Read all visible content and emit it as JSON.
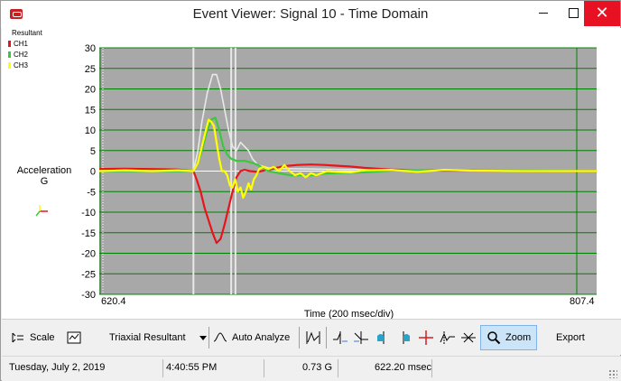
{
  "window": {
    "title": "Event Viewer: Signal  10  - Time Domain",
    "controls": {
      "minimize": "–",
      "maximize": "□",
      "close": "✕"
    }
  },
  "legend": {
    "title": "Resultant",
    "items": [
      {
        "label": "CH1",
        "color": "#e8141b"
      },
      {
        "label": "CH2",
        "color": "#3cc83c"
      },
      {
        "label": "CH3",
        "color": "#ffff00"
      }
    ]
  },
  "y_axis_title": {
    "line1": "Acceleration",
    "line2": "G"
  },
  "chart_data": {
    "type": "line",
    "xlabel": "Time (200 msec/div)",
    "ylabel": "Acceleration G",
    "xlim": [
      620.4,
      807.4
    ],
    "ylim": [
      -30,
      30
    ],
    "x_tick_labels": [
      "620.4",
      "807.4"
    ],
    "y_ticks": [
      30,
      25,
      20,
      15,
      10,
      5,
      0,
      -5,
      -10,
      -15,
      -20,
      -25,
      -30
    ],
    "grid": true,
    "background": "#a8a8a8",
    "grid_color": "#008000",
    "cursor_lines": [
      655.8,
      670.0,
      671.6
    ],
    "series": [
      {
        "name": "Resultant",
        "color": "#e8e8e8",
        "x": [
          620.4,
          640,
          655.8,
          657.5,
          659,
          661,
          663,
          664.5,
          666,
          667.5,
          669,
          670.5,
          672,
          673.5,
          675,
          676.5,
          678,
          680,
          684,
          690,
          700,
          710,
          720,
          730,
          740,
          760,
          780,
          807.4
        ],
        "y": [
          0,
          0,
          0,
          5,
          12,
          19,
          23.5,
          23.5,
          20,
          15,
          10,
          6,
          5,
          7,
          6,
          5,
          3,
          1.5,
          0.8,
          0.6,
          0.5,
          0.4,
          0.4,
          0.3,
          0.3,
          0.2,
          0.1,
          0
        ]
      },
      {
        "name": "CH1",
        "color": "#e8141b",
        "x": [
          620.4,
          630,
          640,
          650,
          655.8,
          657,
          658.5,
          660,
          661.5,
          663,
          664.5,
          666,
          667.5,
          669,
          670.5,
          672,
          673.5,
          675,
          677,
          680,
          685,
          690,
          695,
          700,
          705,
          710,
          715,
          720,
          725,
          730,
          740,
          750,
          760,
          780,
          807.4
        ],
        "y": [
          0.5,
          0.6,
          0.5,
          0.4,
          0,
          -2,
          -5,
          -9,
          -12,
          -15,
          -17.5,
          -16.5,
          -13,
          -9,
          -5,
          -1.5,
          0,
          0.3,
          0,
          -0.2,
          0.5,
          1.2,
          1.5,
          1.6,
          1.5,
          1.3,
          1.1,
          0.8,
          0.6,
          0.4,
          0.2,
          0.1,
          0.1,
          0,
          0
        ]
      },
      {
        "name": "CH2",
        "color": "#3cc83c",
        "x": [
          620.4,
          640,
          655.8,
          657.5,
          659,
          661,
          662.5,
          664,
          665.5,
          667,
          668.5,
          670,
          672,
          675,
          678,
          680,
          684,
          688,
          692,
          696,
          700,
          705,
          710,
          720,
          730,
          745,
          760,
          780,
          807.4
        ],
        "y": [
          0,
          0,
          0,
          2,
          5,
          10,
          12.5,
          13,
          10,
          6,
          4,
          3,
          2.5,
          2.5,
          2,
          1.5,
          0,
          -0.5,
          -1,
          -1,
          -1,
          -0.6,
          -0.5,
          -0.3,
          0.1,
          0.3,
          0.2,
          0.1,
          0
        ]
      },
      {
        "name": "CH3",
        "color": "#ffff00",
        "x": [
          620.4,
          630,
          640,
          650,
          655.8,
          657.5,
          659,
          660.5,
          661.5,
          662.5,
          663.5,
          664.5,
          665.5,
          666.5,
          667.5,
          668.5,
          669.5,
          670.5,
          671.5,
          672.5,
          673.5,
          674.5,
          675.5,
          676.5,
          677.5,
          678.5,
          679.5,
          680.5,
          682,
          684,
          686,
          688,
          690,
          692,
          694,
          696,
          698,
          700,
          702,
          704,
          706,
          710,
          715,
          720,
          730,
          740,
          750,
          760,
          780,
          807.4
        ],
        "y": [
          0,
          0.2,
          0,
          0.2,
          0,
          2,
          6,
          10,
          12.5,
          12,
          11,
          7,
          3,
          0,
          0,
          -1,
          -3.5,
          -4,
          -2,
          -5,
          -4,
          -6.5,
          -5,
          -3,
          -4.5,
          -2,
          -1,
          0.5,
          1,
          0.5,
          1,
          0,
          1.5,
          0,
          -1,
          -0.5,
          -1.5,
          -0.5,
          -1,
          -0.5,
          0,
          -0.2,
          -0.3,
          0.2,
          0.3,
          -0.2,
          0.3,
          0.1,
          0,
          0
        ]
      }
    ]
  },
  "toolbar": {
    "scale_label": "Scale",
    "resultant_select": "Triaxial Resultant",
    "auto_analyze_label": "Auto Analyze",
    "zoom_label": "Zoom",
    "export_label": "Export"
  },
  "status": {
    "date": "Tuesday, July 2, 2019",
    "time": "4:40:55 PM",
    "value_g": "0.73 G",
    "value_ms": "622.20 msec"
  }
}
